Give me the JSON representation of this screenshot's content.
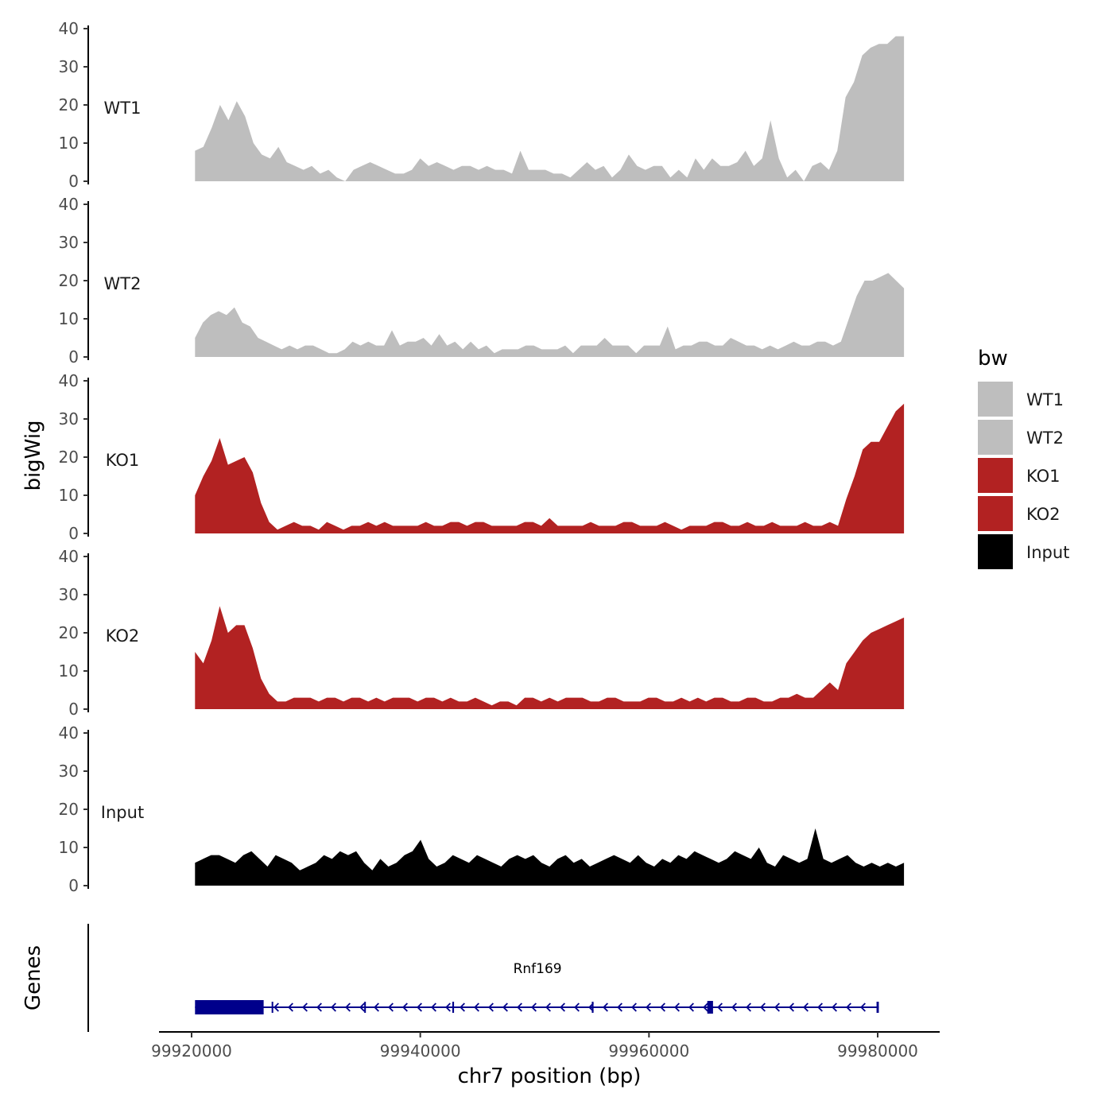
{
  "chart_data": {
    "type": "area",
    "region": "chr7",
    "xlabel": "chr7 position (bp)",
    "ylabel": "bigWig",
    "genes_label": "Genes",
    "xlim": [
      99917000,
      99986500
    ],
    "x_ticks": [
      99920000,
      99940000,
      99960000,
      99980000
    ],
    "x_tick_labels": [
      "99920000",
      "99940000",
      "99960000",
      "99980000"
    ],
    "ylim": [
      0,
      40
    ],
    "y_ticks": [
      0,
      10,
      20,
      30,
      40
    ],
    "y_tick_labels": [
      "0",
      "10",
      "20",
      "30",
      "40"
    ],
    "data_start": 99920300,
    "data_step": 1239,
    "legend": {
      "title": "bw",
      "items": [
        {
          "label": "WT1",
          "color": "#BEBEBE"
        },
        {
          "label": "WT2",
          "color": "#BEBEBE"
        },
        {
          "label": "KO1",
          "color": "#B22222"
        },
        {
          "label": "KO2",
          "color": "#B22222"
        },
        {
          "label": "Input",
          "color": "#000000"
        }
      ]
    },
    "series": [
      {
        "name": "WT1",
        "color": "#BEBEBE",
        "values": [
          8,
          9,
          14,
          20,
          16,
          21,
          17,
          10,
          7,
          6,
          9,
          5,
          4,
          3,
          4,
          2,
          3,
          1,
          0,
          3,
          4,
          5,
          4,
          3,
          2,
          2,
          3,
          6,
          4,
          5,
          4,
          3,
          4,
          4,
          3,
          4,
          3,
          3,
          2,
          8,
          3,
          3,
          3,
          2,
          2,
          1,
          3,
          5,
          3,
          4,
          1,
          3,
          7,
          4,
          3,
          4,
          4,
          1,
          3,
          1,
          6,
          3,
          6,
          4,
          4,
          5,
          8,
          4,
          6,
          16,
          6,
          1,
          3,
          0,
          4,
          5,
          3,
          8,
          22,
          26,
          33,
          35,
          36,
          36,
          38,
          38
        ]
      },
      {
        "name": "WT2",
        "color": "#BEBEBE",
        "values": [
          5,
          9,
          11,
          12,
          11,
          13,
          9,
          8,
          5,
          4,
          3,
          2,
          3,
          2,
          3,
          3,
          2,
          1,
          1,
          2,
          4,
          3,
          4,
          3,
          3,
          7,
          3,
          4,
          4,
          5,
          3,
          6,
          3,
          4,
          2,
          4,
          2,
          3,
          1,
          2,
          2,
          2,
          3,
          3,
          2,
          2,
          2,
          3,
          1,
          3,
          3,
          3,
          5,
          3,
          3,
          3,
          1,
          3,
          3,
          3,
          8,
          2,
          3,
          3,
          4,
          4,
          3,
          3,
          5,
          4,
          3,
          3,
          2,
          3,
          2,
          3,
          4,
          3,
          3,
          4,
          4,
          3,
          4,
          10,
          16,
          20,
          20,
          21,
          22,
          20,
          18
        ]
      },
      {
        "name": "KO1",
        "color": "#B22222",
        "values": [
          10,
          15,
          19,
          25,
          18,
          19,
          20,
          16,
          8,
          3,
          1,
          2,
          3,
          2,
          2,
          1,
          3,
          2,
          1,
          2,
          2,
          3,
          2,
          3,
          2,
          2,
          2,
          2,
          3,
          2,
          2,
          3,
          3,
          2,
          3,
          3,
          2,
          2,
          2,
          2,
          3,
          3,
          2,
          4,
          2,
          2,
          2,
          2,
          3,
          2,
          2,
          2,
          3,
          3,
          2,
          2,
          2,
          3,
          2,
          1,
          2,
          2,
          2,
          3,
          3,
          2,
          2,
          3,
          2,
          2,
          3,
          2,
          2,
          2,
          3,
          2,
          2,
          3,
          2,
          9,
          15,
          22,
          24,
          24,
          28,
          32,
          34
        ]
      },
      {
        "name": "KO2",
        "color": "#B22222",
        "values": [
          15,
          12,
          18,
          27,
          20,
          22,
          22,
          16,
          8,
          4,
          2,
          2,
          3,
          3,
          3,
          2,
          3,
          3,
          2,
          3,
          3,
          2,
          3,
          2,
          3,
          3,
          3,
          2,
          3,
          3,
          2,
          3,
          2,
          2,
          3,
          2,
          1,
          2,
          2,
          1,
          3,
          3,
          2,
          3,
          2,
          3,
          3,
          3,
          2,
          2,
          3,
          3,
          2,
          2,
          2,
          3,
          3,
          2,
          2,
          3,
          2,
          3,
          2,
          3,
          3,
          2,
          2,
          3,
          3,
          2,
          2,
          3,
          3,
          4,
          3,
          3,
          5,
          7,
          5,
          12,
          15,
          18,
          20,
          21,
          22,
          23,
          24
        ]
      },
      {
        "name": "Input",
        "color": "#000000",
        "values": [
          6,
          7,
          8,
          8,
          7,
          6,
          8,
          9,
          7,
          5,
          8,
          7,
          6,
          4,
          5,
          6,
          8,
          7,
          9,
          8,
          9,
          6,
          4,
          7,
          5,
          6,
          8,
          9,
          12,
          7,
          5,
          6,
          8,
          7,
          6,
          8,
          7,
          6,
          5,
          7,
          8,
          7,
          8,
          6,
          5,
          7,
          8,
          6,
          7,
          5,
          6,
          7,
          8,
          7,
          6,
          8,
          6,
          5,
          7,
          6,
          8,
          7,
          9,
          8,
          7,
          6,
          7,
          9,
          8,
          7,
          10,
          6,
          5,
          8,
          7,
          6,
          7,
          15,
          7,
          6,
          7,
          8,
          6,
          5,
          6,
          5,
          6,
          5,
          6
        ]
      }
    ],
    "gene": {
      "name": "Rnf169",
      "strand": "-",
      "color": "#00008B",
      "start": 99920300,
      "end": 99980100,
      "exons": [
        [
          99920300,
          99926300
        ],
        [
          99927000,
          99927100
        ],
        [
          99935100,
          99935200
        ],
        [
          99942800,
          99942950
        ],
        [
          99955000,
          99955150
        ],
        [
          99965100,
          99965600
        ],
        [
          99979900,
          99980100
        ]
      ]
    }
  }
}
